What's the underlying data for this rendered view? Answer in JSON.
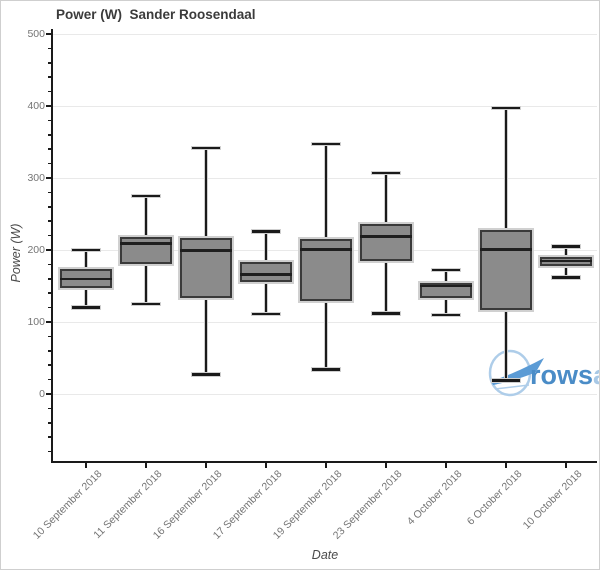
{
  "chart_data": {
    "type": "box",
    "title": "Power (W)  Sander Roosendaal",
    "xlabel": "Date",
    "ylabel": "Power (W)",
    "ylim": [
      -93,
      505
    ],
    "yticks": [
      0,
      100,
      200,
      300,
      400,
      500
    ],
    "y_minor_step": 20,
    "grid": "horizontal gridlines at major y ticks",
    "legend": "none",
    "categories": [
      "10 September 2018",
      "11 September 2018",
      "16 September 2018",
      "17 September 2018",
      "19 September 2018",
      "23 September 2018",
      "4 October 2018",
      "6 October 2018",
      "10 October 2018"
    ],
    "series": [
      {
        "name": "Power (W)",
        "boxes": [
          {
            "min": 120,
            "q1": 147,
            "median": 160,
            "q3": 173,
            "max": 200
          },
          {
            "min": 125,
            "q1": 180,
            "median": 209,
            "q3": 218,
            "max": 275
          },
          {
            "min": 27,
            "q1": 133,
            "median": 199,
            "q3": 216,
            "max": 342
          },
          {
            "min": 111,
            "q1": 155,
            "median": 166,
            "q3": 183,
            "max": 226
          },
          {
            "min": 34,
            "q1": 129,
            "median": 201,
            "q3": 215,
            "max": 347
          },
          {
            "min": 112,
            "q1": 185,
            "median": 219,
            "q3": 236,
            "max": 307
          },
          {
            "min": 110,
            "q1": 134,
            "median": 150,
            "q3": 154,
            "max": 172
          },
          {
            "min": 19,
            "q1": 117,
            "median": 201,
            "q3": 228,
            "max": 397
          },
          {
            "min": 162,
            "q1": 178,
            "median": 185,
            "q3": 190,
            "max": 205
          }
        ]
      }
    ],
    "colors": {
      "box_fill": "#8b8b8b",
      "box_border": "#3a3a3a",
      "box_halo": "#d0d0d0",
      "median": "#1f1f1f",
      "whisker": "#1a1a1a",
      "whisker_halo": "#cfcfcf",
      "grid": "#e9e9e9",
      "axis": "#1a1a1a",
      "tick_label": "#757575",
      "axis_title": "#4a4a4a",
      "title": "#3b3b3b"
    }
  },
  "watermark": {
    "text_primary": "rows",
    "text_secondary": "an",
    "color_primary": "#4a8cc7",
    "color_secondary": "#a9c9e6",
    "circle_color": "#aecde9",
    "boat_color": "#5b9bd5"
  }
}
